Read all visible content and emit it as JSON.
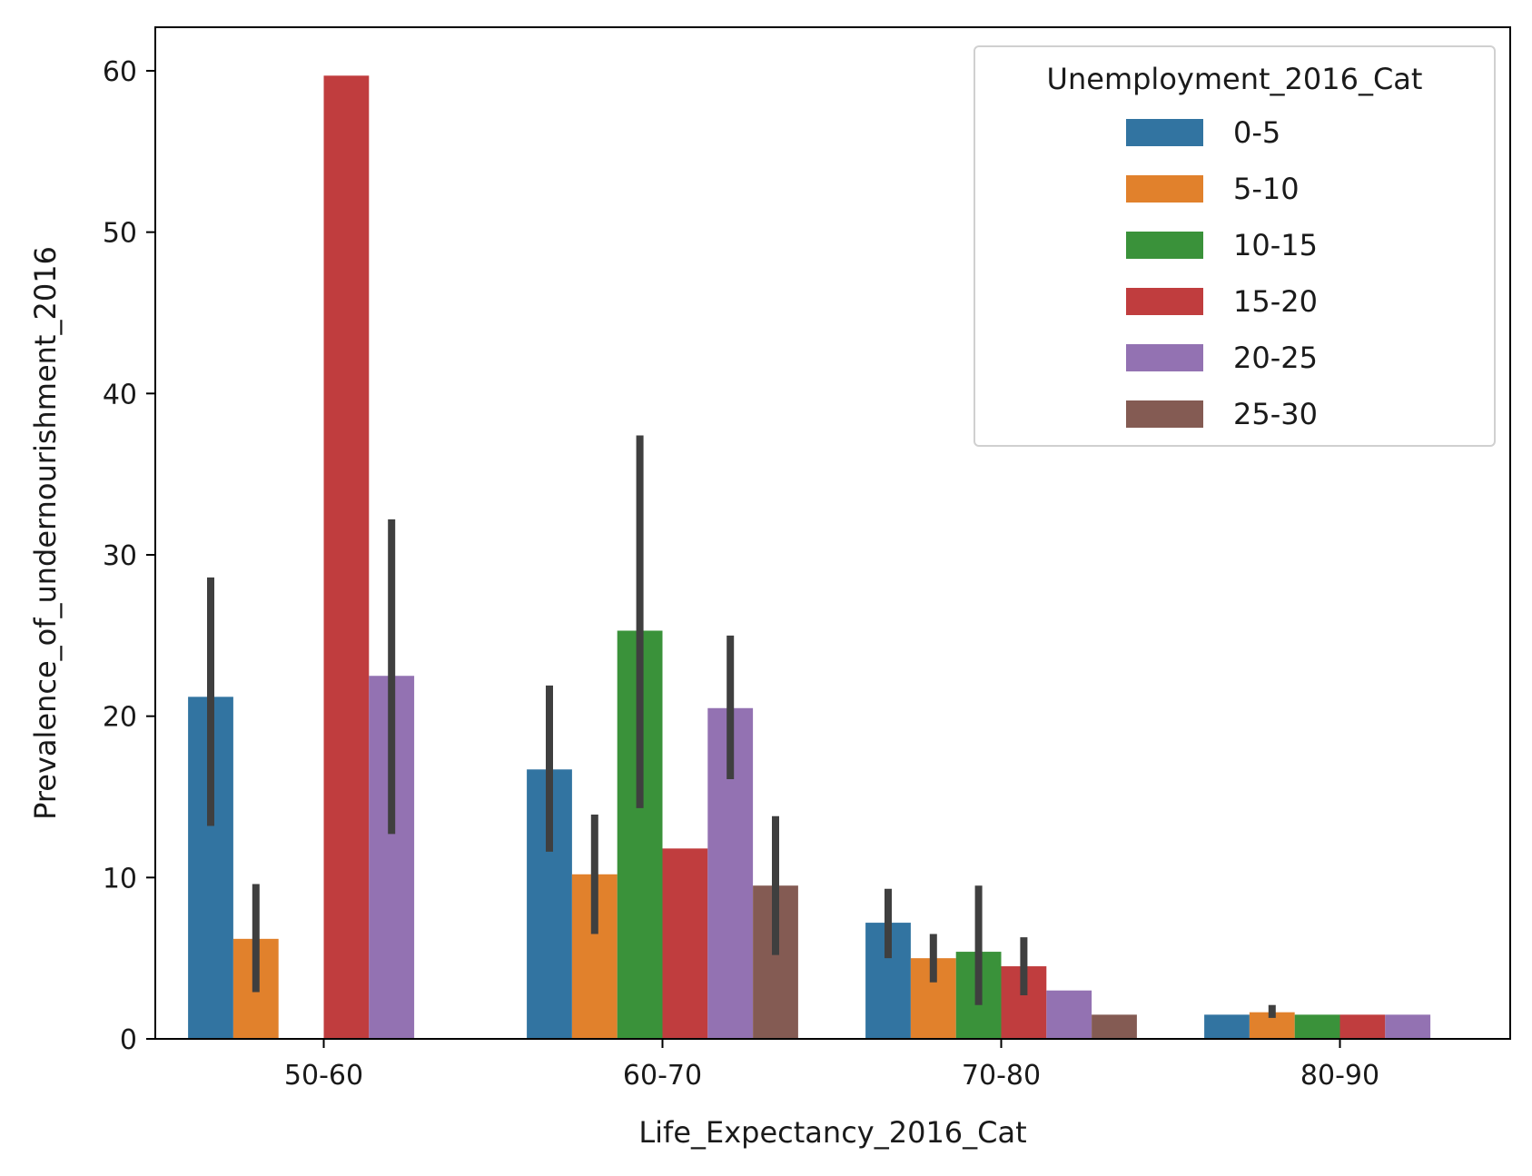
{
  "chart_data": {
    "type": "bar",
    "xlabel": "Life_Expectancy_2016_Cat",
    "ylabel": "Prevalence_of_undernourishment_2016",
    "categories": [
      "50-60",
      "60-70",
      "70-80",
      "80-90"
    ],
    "ylim": [
      0,
      62.7
    ],
    "yticks": [
      0,
      10,
      20,
      30,
      40,
      50,
      60
    ],
    "grid": false,
    "legend": {
      "title": "Unemployment_2016_Cat",
      "placement": "top-right"
    },
    "series": [
      {
        "name": "0-5",
        "color": "#3274a1",
        "values": [
          21.2,
          16.7,
          7.2,
          1.5
        ],
        "err_low": [
          13.2,
          11.6,
          5.0,
          null
        ],
        "err_high": [
          28.6,
          21.9,
          9.3,
          null
        ]
      },
      {
        "name": "5-10",
        "color": "#e1812c",
        "values": [
          6.2,
          10.2,
          5.0,
          1.65
        ],
        "err_low": [
          2.9,
          6.5,
          3.5,
          1.3
        ],
        "err_high": [
          9.6,
          13.9,
          6.5,
          2.1
        ]
      },
      {
        "name": "10-15",
        "color": "#3a923a",
        "values": [
          null,
          25.3,
          5.4,
          1.5
        ],
        "err_low": [
          null,
          14.3,
          2.1,
          null
        ],
        "err_high": [
          null,
          37.4,
          9.5,
          null
        ]
      },
      {
        "name": "15-20",
        "color": "#c03d3e",
        "values": [
          59.7,
          11.8,
          4.5,
          1.5
        ],
        "err_low": [
          null,
          null,
          2.7,
          null
        ],
        "err_high": [
          null,
          null,
          6.3,
          null
        ]
      },
      {
        "name": "20-25",
        "color": "#9372b2",
        "values": [
          22.5,
          20.5,
          3.0,
          1.5
        ],
        "err_low": [
          12.7,
          16.1,
          null,
          null
        ],
        "err_high": [
          32.2,
          25.0,
          null,
          null
        ]
      },
      {
        "name": "25-30",
        "color": "#845b53",
        "values": [
          null,
          9.5,
          1.5,
          null
        ],
        "err_low": [
          null,
          5.2,
          null,
          null
        ],
        "err_high": [
          null,
          13.8,
          null,
          null
        ]
      }
    ]
  }
}
